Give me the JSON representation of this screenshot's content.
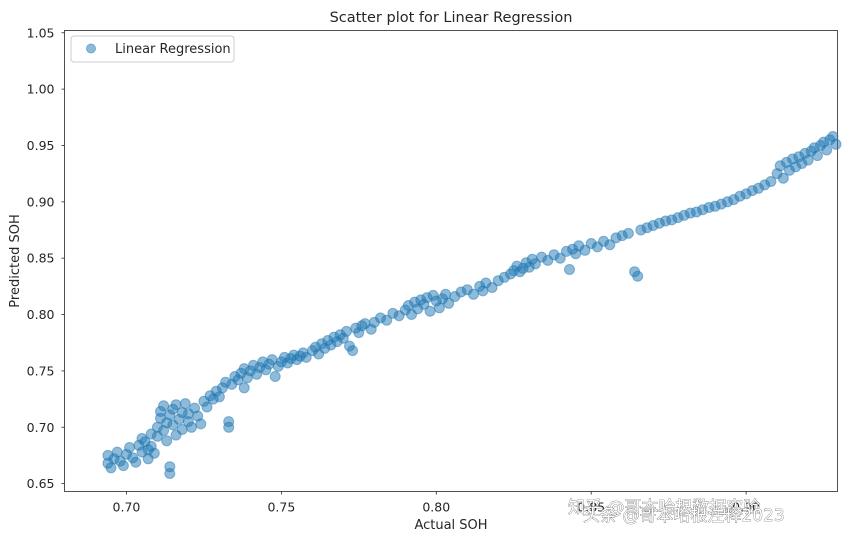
{
  "chart_data": {
    "type": "scatter",
    "title": "Scatter plot for Linear Regression",
    "xlabel": "Actual SOH",
    "ylabel": "Predicted SOH",
    "xlim": [
      0.68,
      0.9295
    ],
    "ylim": [
      0.643,
      1.052
    ],
    "xticks": [
      "0.70",
      "0.75",
      "0.80",
      "0.85",
      "0.90"
    ],
    "yticks": [
      "0.65",
      "0.70",
      "0.75",
      "0.80",
      "0.85",
      "0.90",
      "0.95",
      "1.00",
      "1.05"
    ],
    "grid": false,
    "legend": {
      "placement": "top-left"
    },
    "series": [
      {
        "name": "Linear Regression",
        "color": "#1f77b4",
        "alpha": 0.5,
        "points": [
          [
            0.694,
            0.668
          ],
          [
            0.694,
            0.675
          ],
          [
            0.695,
            0.664
          ],
          [
            0.696,
            0.672
          ],
          [
            0.697,
            0.678
          ],
          [
            0.698,
            0.67
          ],
          [
            0.699,
            0.666
          ],
          [
            0.7,
            0.676
          ],
          [
            0.701,
            0.682
          ],
          [
            0.702,
            0.673
          ],
          [
            0.703,
            0.669
          ],
          [
            0.704,
            0.684
          ],
          [
            0.705,
            0.678
          ],
          [
            0.705,
            0.69
          ],
          [
            0.706,
            0.687
          ],
          [
            0.707,
            0.68
          ],
          [
            0.707,
            0.672
          ],
          [
            0.708,
            0.683
          ],
          [
            0.708,
            0.694
          ],
          [
            0.709,
            0.677
          ],
          [
            0.71,
            0.692
          ],
          [
            0.71,
            0.7
          ],
          [
            0.711,
            0.708
          ],
          [
            0.711,
            0.714
          ],
          [
            0.712,
            0.697
          ],
          [
            0.712,
            0.719
          ],
          [
            0.713,
            0.688
          ],
          [
            0.713,
            0.704
          ],
          [
            0.714,
            0.711
          ],
          [
            0.714,
            0.665
          ],
          [
            0.714,
            0.659
          ],
          [
            0.715,
            0.716
          ],
          [
            0.715,
            0.702
          ],
          [
            0.716,
            0.693
          ],
          [
            0.716,
            0.72
          ],
          [
            0.717,
            0.707
          ],
          [
            0.718,
            0.713
          ],
          [
            0.718,
            0.698
          ],
          [
            0.719,
            0.721
          ],
          [
            0.72,
            0.705
          ],
          [
            0.72,
            0.712
          ],
          [
            0.721,
            0.7
          ],
          [
            0.722,
            0.717
          ],
          [
            0.723,
            0.71
          ],
          [
            0.724,
            0.703
          ],
          [
            0.725,
            0.723
          ],
          [
            0.726,
            0.718
          ],
          [
            0.727,
            0.728
          ],
          [
            0.728,
            0.725
          ],
          [
            0.729,
            0.732
          ],
          [
            0.73,
            0.727
          ],
          [
            0.731,
            0.735
          ],
          [
            0.732,
            0.74
          ],
          [
            0.733,
            0.705
          ],
          [
            0.733,
            0.7
          ],
          [
            0.734,
            0.738
          ],
          [
            0.735,
            0.745
          ],
          [
            0.736,
            0.742
          ],
          [
            0.737,
            0.748
          ],
          [
            0.738,
            0.752
          ],
          [
            0.738,
            0.735
          ],
          [
            0.739,
            0.744
          ],
          [
            0.74,
            0.75
          ],
          [
            0.741,
            0.755
          ],
          [
            0.742,
            0.747
          ],
          [
            0.743,
            0.753
          ],
          [
            0.744,
            0.758
          ],
          [
            0.745,
            0.751
          ],
          [
            0.746,
            0.756
          ],
          [
            0.747,
            0.76
          ],
          [
            0.748,
            0.745
          ],
          [
            0.749,
            0.754
          ],
          [
            0.75,
            0.758
          ],
          [
            0.751,
            0.762
          ],
          [
            0.752,
            0.757
          ],
          [
            0.753,
            0.761
          ],
          [
            0.754,
            0.764
          ],
          [
            0.755,
            0.76
          ],
          [
            0.756,
            0.763
          ],
          [
            0.757,
            0.766
          ],
          [
            0.758,
            0.762
          ],
          [
            0.76,
            0.768
          ],
          [
            0.761,
            0.771
          ],
          [
            0.762,
            0.765
          ],
          [
            0.763,
            0.774
          ],
          [
            0.764,
            0.77
          ],
          [
            0.765,
            0.777
          ],
          [
            0.766,
            0.773
          ],
          [
            0.767,
            0.78
          ],
          [
            0.768,
            0.776
          ],
          [
            0.769,
            0.782
          ],
          [
            0.77,
            0.779
          ],
          [
            0.771,
            0.785
          ],
          [
            0.772,
            0.772
          ],
          [
            0.773,
            0.768
          ],
          [
            0.774,
            0.788
          ],
          [
            0.775,
            0.784
          ],
          [
            0.776,
            0.79
          ],
          [
            0.777,
            0.792
          ],
          [
            0.779,
            0.787
          ],
          [
            0.78,
            0.793
          ],
          [
            0.782,
            0.797
          ],
          [
            0.784,
            0.795
          ],
          [
            0.786,
            0.801
          ],
          [
            0.788,
            0.799
          ],
          [
            0.79,
            0.804
          ],
          [
            0.791,
            0.808
          ],
          [
            0.792,
            0.8
          ],
          [
            0.793,
            0.811
          ],
          [
            0.794,
            0.805
          ],
          [
            0.795,
            0.813
          ],
          [
            0.796,
            0.809
          ],
          [
            0.797,
            0.815
          ],
          [
            0.798,
            0.803
          ],
          [
            0.799,
            0.817
          ],
          [
            0.8,
            0.812
          ],
          [
            0.801,
            0.806
          ],
          [
            0.802,
            0.814
          ],
          [
            0.803,
            0.818
          ],
          [
            0.804,
            0.81
          ],
          [
            0.806,
            0.816
          ],
          [
            0.808,
            0.82
          ],
          [
            0.81,
            0.822
          ],
          [
            0.812,
            0.818
          ],
          [
            0.814,
            0.825
          ],
          [
            0.815,
            0.821
          ],
          [
            0.816,
            0.828
          ],
          [
            0.818,
            0.824
          ],
          [
            0.82,
            0.83
          ],
          [
            0.822,
            0.833
          ],
          [
            0.824,
            0.836
          ],
          [
            0.825,
            0.839
          ],
          [
            0.826,
            0.843
          ],
          [
            0.827,
            0.838
          ],
          [
            0.828,
            0.841
          ],
          [
            0.829,
            0.846
          ],
          [
            0.83,
            0.842
          ],
          [
            0.831,
            0.849
          ],
          [
            0.832,
            0.845
          ],
          [
            0.834,
            0.851
          ],
          [
            0.836,
            0.848
          ],
          [
            0.838,
            0.853
          ],
          [
            0.84,
            0.85
          ],
          [
            0.842,
            0.856
          ],
          [
            0.843,
            0.84
          ],
          [
            0.844,
            0.858
          ],
          [
            0.845,
            0.854
          ],
          [
            0.846,
            0.861
          ],
          [
            0.848,
            0.857
          ],
          [
            0.85,
            0.863
          ],
          [
            0.852,
            0.86
          ],
          [
            0.854,
            0.865
          ],
          [
            0.856,
            0.862
          ],
          [
            0.858,
            0.868
          ],
          [
            0.86,
            0.87
          ],
          [
            0.862,
            0.872
          ],
          [
            0.864,
            0.838
          ],
          [
            0.865,
            0.834
          ],
          [
            0.866,
            0.875
          ],
          [
            0.868,
            0.877
          ],
          [
            0.87,
            0.879
          ],
          [
            0.872,
            0.881
          ],
          [
            0.874,
            0.883
          ],
          [
            0.876,
            0.884
          ],
          [
            0.878,
            0.886
          ],
          [
            0.88,
            0.888
          ],
          [
            0.882,
            0.89
          ],
          [
            0.884,
            0.891
          ],
          [
            0.886,
            0.893
          ],
          [
            0.888,
            0.895
          ],
          [
            0.89,
            0.896
          ],
          [
            0.892,
            0.898
          ],
          [
            0.894,
            0.9
          ],
          [
            0.896,
            0.902
          ],
          [
            0.898,
            0.905
          ],
          [
            0.9,
            0.907
          ],
          [
            0.902,
            0.91
          ],
          [
            0.904,
            0.912
          ],
          [
            0.906,
            0.915
          ],
          [
            0.908,
            0.918
          ],
          [
            0.91,
            0.925
          ],
          [
            0.911,
            0.932
          ],
          [
            0.912,
            0.921
          ],
          [
            0.913,
            0.935
          ],
          [
            0.914,
            0.928
          ],
          [
            0.915,
            0.938
          ],
          [
            0.916,
            0.931
          ],
          [
            0.917,
            0.94
          ],
          [
            0.918,
            0.934
          ],
          [
            0.919,
            0.943
          ],
          [
            0.92,
            0.937
          ],
          [
            0.921,
            0.945
          ],
          [
            0.922,
            0.948
          ],
          [
            0.923,
            0.941
          ],
          [
            0.924,
            0.95
          ],
          [
            0.925,
            0.953
          ],
          [
            0.926,
            0.946
          ],
          [
            0.927,
            0.955
          ],
          [
            0.928,
            0.958
          ],
          [
            0.929,
            0.951
          ]
        ]
      }
    ]
  },
  "watermark": {
    "line1": "知乎 @哥本哈根数据实验",
    "line2": "头条 @哥本哈根注释2023"
  }
}
